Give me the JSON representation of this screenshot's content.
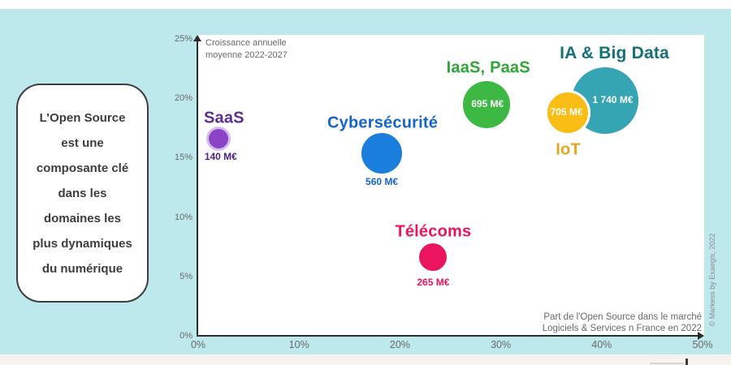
{
  "page": {
    "background_color": "#BDE8EC",
    "callout": {
      "lines": [
        "L’Open Source",
        "est une",
        "composante clé",
        "dans les",
        "domaines les",
        "plus dynamiques",
        "du numérique"
      ]
    },
    "copyright": "© Markess by Exaegis, 2022"
  },
  "chart_data": {
    "type": "bubble",
    "title": "",
    "y_axis": {
      "label": "Croissance annuelle moyenne 2022-2027",
      "label_lines": [
        "Croissance annuelle",
        "moyenne 2022-2027"
      ],
      "range": [
        0,
        25
      ],
      "unit": "%",
      "ticks": [
        {
          "value": 0,
          "label": "0%"
        },
        {
          "value": 5,
          "label": "5%"
        },
        {
          "value": 10,
          "label": "10%"
        },
        {
          "value": 15,
          "label": "15%"
        },
        {
          "value": 20,
          "label": "20%"
        },
        {
          "value": 25,
          "label": "25%"
        }
      ]
    },
    "x_axis": {
      "label": "Part de l'Open Source dans le marché Logiciels & Services n France en 2022",
      "caption_lines": [
        "Part de l'Open Source dans le marché",
        "Logiciels & Services n France en 2022"
      ],
      "range": [
        0,
        50
      ],
      "unit": "%",
      "ticks": [
        {
          "value": 0,
          "label": "0%"
        },
        {
          "value": 10,
          "label": "10%"
        },
        {
          "value": 20,
          "label": "20%"
        },
        {
          "value": 30,
          "label": "30%"
        },
        {
          "value": 40,
          "label": "40%"
        },
        {
          "value": 50,
          "label": "50%"
        }
      ]
    },
    "legend": "none",
    "grid": false,
    "points": [
      {
        "name": "SaaS",
        "slug": "saas",
        "x": 2.0,
        "y": 16.6,
        "value": 140,
        "value_label": "140 M€",
        "color": "#8C44C7",
        "text_color": "#5C2D96",
        "value_color": "#4F2187",
        "r": 12,
        "halo": "rgba(150,90,210,0.40)",
        "ring": null,
        "label_font": 20,
        "label_offset": [
          7,
          -25
        ],
        "value_inside": false,
        "value_offset": [
          3,
          22
        ]
      },
      {
        "name": "Cybersécurité",
        "slug": "cybersecurite",
        "x": 18.2,
        "y": 15.4,
        "value": 560,
        "value_label": "560 M€",
        "color": "#1A7EDC",
        "text_color": "#1565C8",
        "value_color": "#1565C8",
        "r": 25,
        "halo": null,
        "ring": null,
        "label_font": 20,
        "label_offset": [
          1,
          -37
        ],
        "value_inside": false,
        "value_offset": [
          0,
          35
        ]
      },
      {
        "name": "Télécoms",
        "slug": "telecoms",
        "x": 23.3,
        "y": 6.6,
        "value": 265,
        "value_label": "265 M€",
        "color": "#EB155F",
        "text_color": "#EB155F",
        "value_color": "#EB155F",
        "r": 17,
        "halo": null,
        "ring": null,
        "label_font": 20,
        "label_offset": [
          0,
          -31
        ],
        "value_inside": false,
        "value_offset": [
          0,
          31
        ]
      },
      {
        "name": "IaaS, PaaS",
        "slug": "iaas-paas",
        "x": 28.6,
        "y": 19.5,
        "value": 695,
        "value_label": "695 M€",
        "color": "#3CB843",
        "text_color": "#2EA534",
        "value_color": "#FFFFFF",
        "r": 29,
        "halo": null,
        "ring": null,
        "label_font": 20,
        "label_offset": [
          2,
          -45
        ],
        "value_inside": true,
        "value_offset": [
          1,
          -1
        ]
      },
      {
        "name": "IA & Big Data",
        "slug": "ia-big-data",
        "x": 40.3,
        "y": 19.8,
        "value": 1740,
        "value_label": "1 740 M€",
        "color": "#36A5B3",
        "text_color": "#14707C",
        "value_color": "#FFFFFF",
        "r": 41,
        "halo": null,
        "ring": null,
        "label_font": 21,
        "label_offset": [
          12,
          -58
        ],
        "value_inside": true,
        "value_offset": [
          10,
          -1
        ]
      },
      {
        "name": "IoT",
        "slug": "iot",
        "x": 36.6,
        "y": 18.8,
        "value": 705,
        "value_label": "705 M€",
        "color": "#F9BE15",
        "text_color": "#E2A71E",
        "value_color": "#FFFFFF",
        "r": 28,
        "halo": null,
        "ring": "#FFFFFF",
        "label_font": 20,
        "label_offset": [
          1,
          46
        ],
        "value_inside": true,
        "value_offset": [
          -1,
          -1
        ]
      }
    ]
  }
}
